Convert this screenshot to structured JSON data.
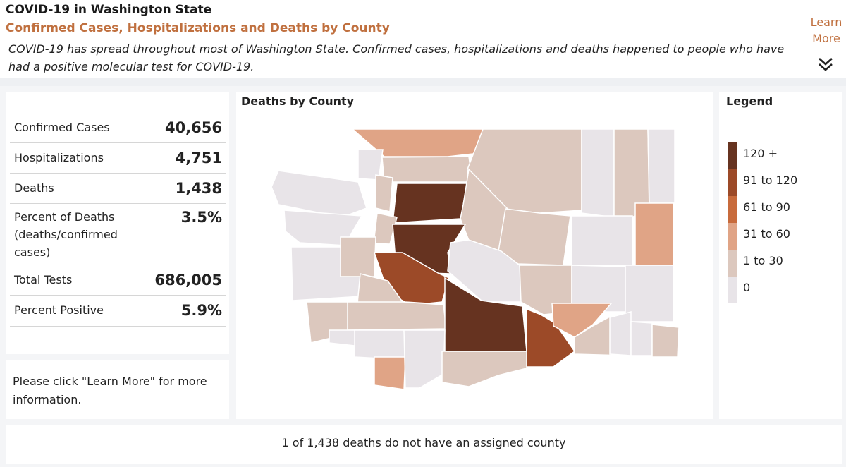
{
  "header": {
    "title": "COVID-19 in Washington State",
    "subtitle": "Confirmed Cases, Hospitalizations and Deaths by County",
    "description": "COVID-19 has spread throughout most of Washington State. Confirmed cases, hospitalizations and deaths happened to people who have had a positive molecular test for COVID-19."
  },
  "learn_more": {
    "line1": "Learn",
    "line2": "More",
    "icon": "double-chevron-down-icon"
  },
  "stats": [
    {
      "label": "Confirmed Cases",
      "value": "40,656"
    },
    {
      "label": "Hospitalizations",
      "value": "4,751"
    },
    {
      "label": "Deaths",
      "value": "1,438"
    },
    {
      "label": "Percent of Deaths (deaths/confirmed cases)",
      "value": "3.5%"
    },
    {
      "label": "Total Tests",
      "value": "686,005"
    },
    {
      "label": "Percent Positive",
      "value": "5.9%"
    }
  ],
  "note": "Please click \"Learn More\" for more information.",
  "map": {
    "title": "Deaths by County",
    "colors": {
      "c0": "#e8e4e8",
      "c1": "#dcc8be",
      "c2": "#e0a486",
      "c3": "#c86b3c",
      "c4": "#9c4a28",
      "c5": "#663320"
    },
    "counties": [
      {
        "name": "Whatcom",
        "bin": "31 to 60"
      },
      {
        "name": "San Juan",
        "bin": "0"
      },
      {
        "name": "Skagit",
        "bin": "1 to 30"
      },
      {
        "name": "Okanogan",
        "bin": "1 to 30"
      },
      {
        "name": "Ferry",
        "bin": "0"
      },
      {
        "name": "Stevens",
        "bin": "1 to 30"
      },
      {
        "name": "Pend Oreille",
        "bin": "0"
      },
      {
        "name": "Clallam",
        "bin": "0"
      },
      {
        "name": "Jefferson",
        "bin": "0"
      },
      {
        "name": "Island",
        "bin": "1 to 30"
      },
      {
        "name": "Snohomish",
        "bin": "120 +"
      },
      {
        "name": "Chelan",
        "bin": "1 to 30"
      },
      {
        "name": "Douglas",
        "bin": "1 to 30"
      },
      {
        "name": "Lincoln",
        "bin": "0"
      },
      {
        "name": "Spokane",
        "bin": "31 to 60"
      },
      {
        "name": "Kitsap",
        "bin": "1 to 30"
      },
      {
        "name": "Grays Harbor",
        "bin": "0"
      },
      {
        "name": "Mason",
        "bin": "1 to 30"
      },
      {
        "name": "King",
        "bin": "120 +"
      },
      {
        "name": "Kittitas",
        "bin": "0"
      },
      {
        "name": "Grant",
        "bin": "1 to 30"
      },
      {
        "name": "Adams",
        "bin": "0"
      },
      {
        "name": "Whitman",
        "bin": "0"
      },
      {
        "name": "Pierce",
        "bin": "91 to 120"
      },
      {
        "name": "Thurston",
        "bin": "1 to 30"
      },
      {
        "name": "Pacific",
        "bin": "1 to 30"
      },
      {
        "name": "Lewis",
        "bin": "1 to 30"
      },
      {
        "name": "Yakima",
        "bin": "120 +"
      },
      {
        "name": "Benton",
        "bin": "91 to 120"
      },
      {
        "name": "Franklin",
        "bin": "31 to 60"
      },
      {
        "name": "Walla Walla",
        "bin": "1 to 30"
      },
      {
        "name": "Columbia",
        "bin": "0"
      },
      {
        "name": "Garfield",
        "bin": "0"
      },
      {
        "name": "Asotin",
        "bin": "1 to 30"
      },
      {
        "name": "Wahkiakum",
        "bin": "0"
      },
      {
        "name": "Cowlitz",
        "bin": "0"
      },
      {
        "name": "Clark",
        "bin": "31 to 60"
      },
      {
        "name": "Skamania",
        "bin": "0"
      },
      {
        "name": "Klickitat",
        "bin": "1 to 30"
      }
    ]
  },
  "legend": {
    "title": "Legend",
    "items": [
      {
        "label": "120 +",
        "color": "#663320"
      },
      {
        "label": "91 to 120",
        "color": "#9c4a28"
      },
      {
        "label": "61 to 90",
        "color": "#c86b3c"
      },
      {
        "label": "31 to 60",
        "color": "#e0a486"
      },
      {
        "label": "1 to 30",
        "color": "#dcc8be"
      },
      {
        "label": "0",
        "color": "#e8e4e8"
      }
    ]
  },
  "footer": {
    "text": "1 of 1,438 deaths do not have an assigned county"
  }
}
